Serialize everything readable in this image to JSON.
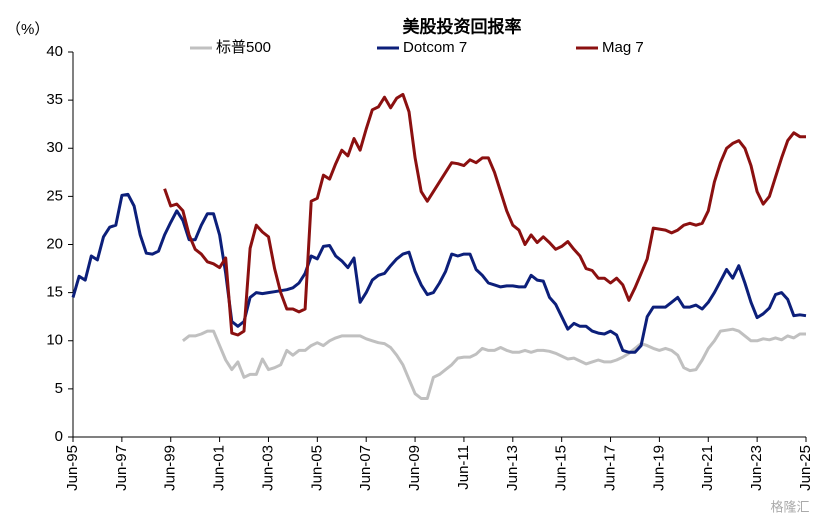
{
  "chart_data": {
    "type": "line",
    "title": "美股投资回报率",
    "y_label": "（%）",
    "watermark": "格隆汇",
    "categories": [
      "Jun-95",
      null,
      null,
      null,
      null,
      null,
      null,
      null,
      "Jun-97",
      null,
      null,
      null,
      null,
      null,
      null,
      null,
      "Jun-99",
      null,
      null,
      null,
      null,
      null,
      null,
      null,
      "Jun-01",
      null,
      null,
      null,
      null,
      null,
      null,
      null,
      "Jun-03",
      null,
      null,
      null,
      null,
      null,
      null,
      null,
      "Jun-05",
      null,
      null,
      null,
      null,
      null,
      null,
      null,
      "Jun-07",
      null,
      null,
      null,
      null,
      null,
      null,
      null,
      "Jun-09",
      null,
      null,
      null,
      null,
      null,
      null,
      null,
      "Jun-11",
      null,
      null,
      null,
      null,
      null,
      null,
      null,
      "Jun-13",
      null,
      null,
      null,
      null,
      null,
      null,
      null,
      "Jun-15",
      null,
      null,
      null,
      null,
      null,
      null,
      null,
      "Jun-17",
      null,
      null,
      null,
      null,
      null,
      null,
      null,
      "Jun-19",
      null,
      null,
      null,
      null,
      null,
      null,
      null,
      "Jun-21",
      null,
      null,
      null,
      null,
      null,
      null,
      null,
      "Jun-23",
      null,
      null,
      null,
      null,
      null,
      null,
      null,
      "Jun-25"
    ],
    "series": [
      {
        "name": "标普500",
        "color": "#c0c0c0",
        "values": [
          null,
          null,
          null,
          null,
          null,
          null,
          null,
          null,
          null,
          null,
          null,
          null,
          null,
          null,
          null,
          null,
          null,
          null,
          10,
          10.5,
          10.5,
          10.7,
          11,
          11,
          9.5,
          8,
          7,
          7.8,
          6.2,
          6.5,
          6.5,
          8.1,
          7,
          7.2,
          7.5,
          9,
          8.5,
          9,
          9,
          9.5,
          9.8,
          9.5,
          10,
          10.3,
          10.5,
          10.5,
          10.5,
          10.5,
          10.2,
          10,
          9.8,
          9.7,
          9.3,
          8.5,
          7.5,
          6,
          4.5,
          4,
          4,
          6.2,
          6.5,
          7,
          7.5,
          8.2,
          8.3,
          8.3,
          8.6,
          9.2,
          9,
          9,
          9.3,
          9,
          8.8,
          8.8,
          9,
          8.8,
          9,
          9,
          8.9,
          8.7,
          8.4,
          8.1,
          8.2,
          7.9,
          7.6,
          7.8,
          8,
          7.8,
          7.8,
          8,
          8.3,
          8.7,
          9.2,
          9.7,
          9.5,
          9.2,
          9,
          9.2,
          9,
          8.5,
          7.2,
          6.9,
          7,
          8,
          9.2,
          10,
          11,
          11.1,
          11.2,
          11,
          10.5,
          10,
          10,
          10.2,
          10.1,
          10.3,
          10.1,
          10.5,
          10.3,
          10.7,
          10.7
        ]
      },
      {
        "name": "Dotcom 7",
        "color": "#0c1f7a",
        "values": [
          14.5,
          16.7,
          16.3,
          18.8,
          18.4,
          20.8,
          21.8,
          22,
          25.1,
          25.2,
          24,
          21,
          19.1,
          19,
          19.3,
          21,
          22.3,
          23.5,
          22.5,
          20.5,
          20.5,
          22,
          23.2,
          23.2,
          21,
          17,
          12,
          11.5,
          12,
          14.5,
          15,
          14.9,
          15,
          15.1,
          15.2,
          15.3,
          15.5,
          16,
          17,
          18.8,
          18.5,
          19.8,
          19.9,
          18.8,
          18.3,
          17.6,
          18.6,
          14,
          15,
          16.3,
          16.8,
          17,
          17.8,
          18.5,
          19,
          19.2,
          17.2,
          15.8,
          14.8,
          15,
          16,
          17.2,
          19,
          18.8,
          19,
          19,
          17.4,
          16.8,
          16,
          15.8,
          15.6,
          15.7,
          15.7,
          15.6,
          15.6,
          16.8,
          16.3,
          16.2,
          14.5,
          13.8,
          12.5,
          11.2,
          11.8,
          11.5,
          11.5,
          11,
          10.8,
          10.7,
          11,
          10.6,
          9,
          8.8,
          8.8,
          9.5,
          12.5,
          13.5,
          13.5,
          13.5,
          14,
          14.5,
          13.5,
          13.5,
          13.7,
          13.3,
          14,
          15,
          16.2,
          17.4,
          16.5,
          17.8,
          16,
          14,
          12.4,
          12.8,
          13.4,
          14.8,
          15,
          14.3,
          12.6,
          12.7,
          12.6
        ]
      },
      {
        "name": "Mag 7",
        "color": "#8b1010",
        "values": [
          null,
          null,
          null,
          null,
          null,
          null,
          null,
          null,
          null,
          null,
          null,
          null,
          null,
          null,
          null,
          25.8,
          24,
          24.2,
          23.5,
          21,
          19.5,
          19,
          18.2,
          18,
          17.6,
          18.6,
          10.8,
          10.6,
          11,
          19.6,
          22,
          21.3,
          20.8,
          17.5,
          15,
          13.3,
          13.3,
          13,
          13.3,
          24.5,
          24.8,
          27.2,
          26.8,
          28.4,
          29.8,
          29.2,
          31,
          29.8,
          32,
          34,
          34.3,
          35.3,
          34.2,
          35.2,
          35.6,
          33.8,
          29,
          25.5,
          24.5,
          25.5,
          26.5,
          27.5,
          28.5,
          28.4,
          28.2,
          28.8,
          28.5,
          29,
          29,
          27.5,
          25.5,
          23.5,
          22,
          21.5,
          20,
          21,
          20.2,
          20.8,
          20.2,
          19.5,
          19.8,
          20.3,
          19.5,
          18.8,
          17.5,
          17.3,
          16.5,
          16.5,
          16,
          16.5,
          15.8,
          14.2,
          15.5,
          17,
          18.5,
          21.7,
          21.6,
          21.5,
          21.2,
          21.5,
          22,
          22.2,
          22,
          22.2,
          23.5,
          26.5,
          28.5,
          30,
          30.5,
          30.8,
          30,
          28.2,
          25.5,
          24.2,
          25,
          27,
          29,
          30.8,
          31.6,
          31.2,
          31.2
        ]
      }
    ],
    "ylim": [
      0,
      40
    ],
    "yticks": [
      0,
      5,
      10,
      15,
      20,
      25,
      30,
      35,
      40
    ],
    "grid": false,
    "legend": "top"
  }
}
